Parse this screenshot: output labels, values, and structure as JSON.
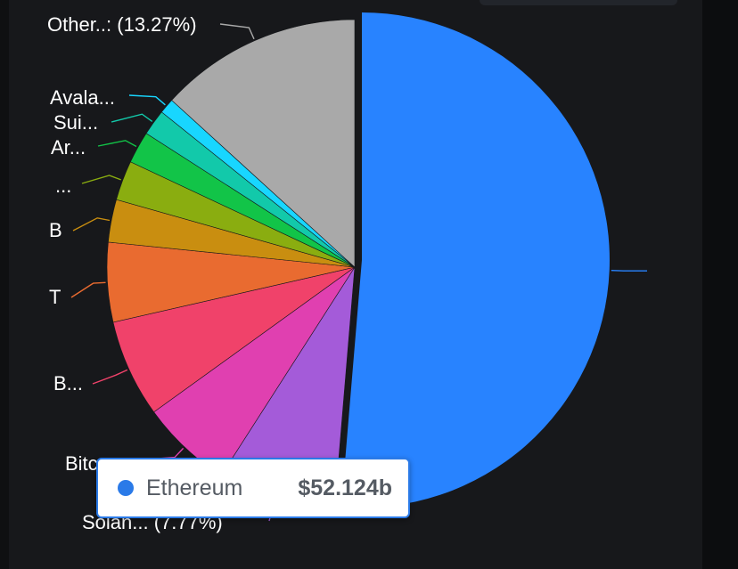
{
  "chart_data": {
    "type": "pie",
    "slices": [
      {
        "label": "",
        "value": 51.5,
        "color": "#2883ff"
      },
      {
        "label": "Solan... (7.77%)",
        "value": 7.77,
        "color": "#a45bd9"
      },
      {
        "label": "Bitc",
        "value": 6.0,
        "color": "#e040b0"
      },
      {
        "label": "B...",
        "value": 6.4,
        "color": "#f0426a"
      },
      {
        "label": "T",
        "value": 5.2,
        "color": "#e96b30"
      },
      {
        "label": "B",
        "value": 2.8,
        "color": "#c98e10"
      },
      {
        "label": "...",
        "value": 2.6,
        "color": "#8aad10"
      },
      {
        "label": "Ar...",
        "value": 2.1,
        "color": "#12c448"
      },
      {
        "label": "Sui...",
        "value": 1.7,
        "color": "#12c9aa"
      },
      {
        "label": "Avala...",
        "value": 1.0,
        "color": "#18d6ff"
      },
      {
        "label": "Other..: (13.27%)",
        "value": 13.27,
        "color": "#a9a9a9"
      }
    ]
  },
  "tooltip": {
    "name": "Ethereum",
    "value": "$52.124b",
    "color": "#2a7ae8"
  }
}
